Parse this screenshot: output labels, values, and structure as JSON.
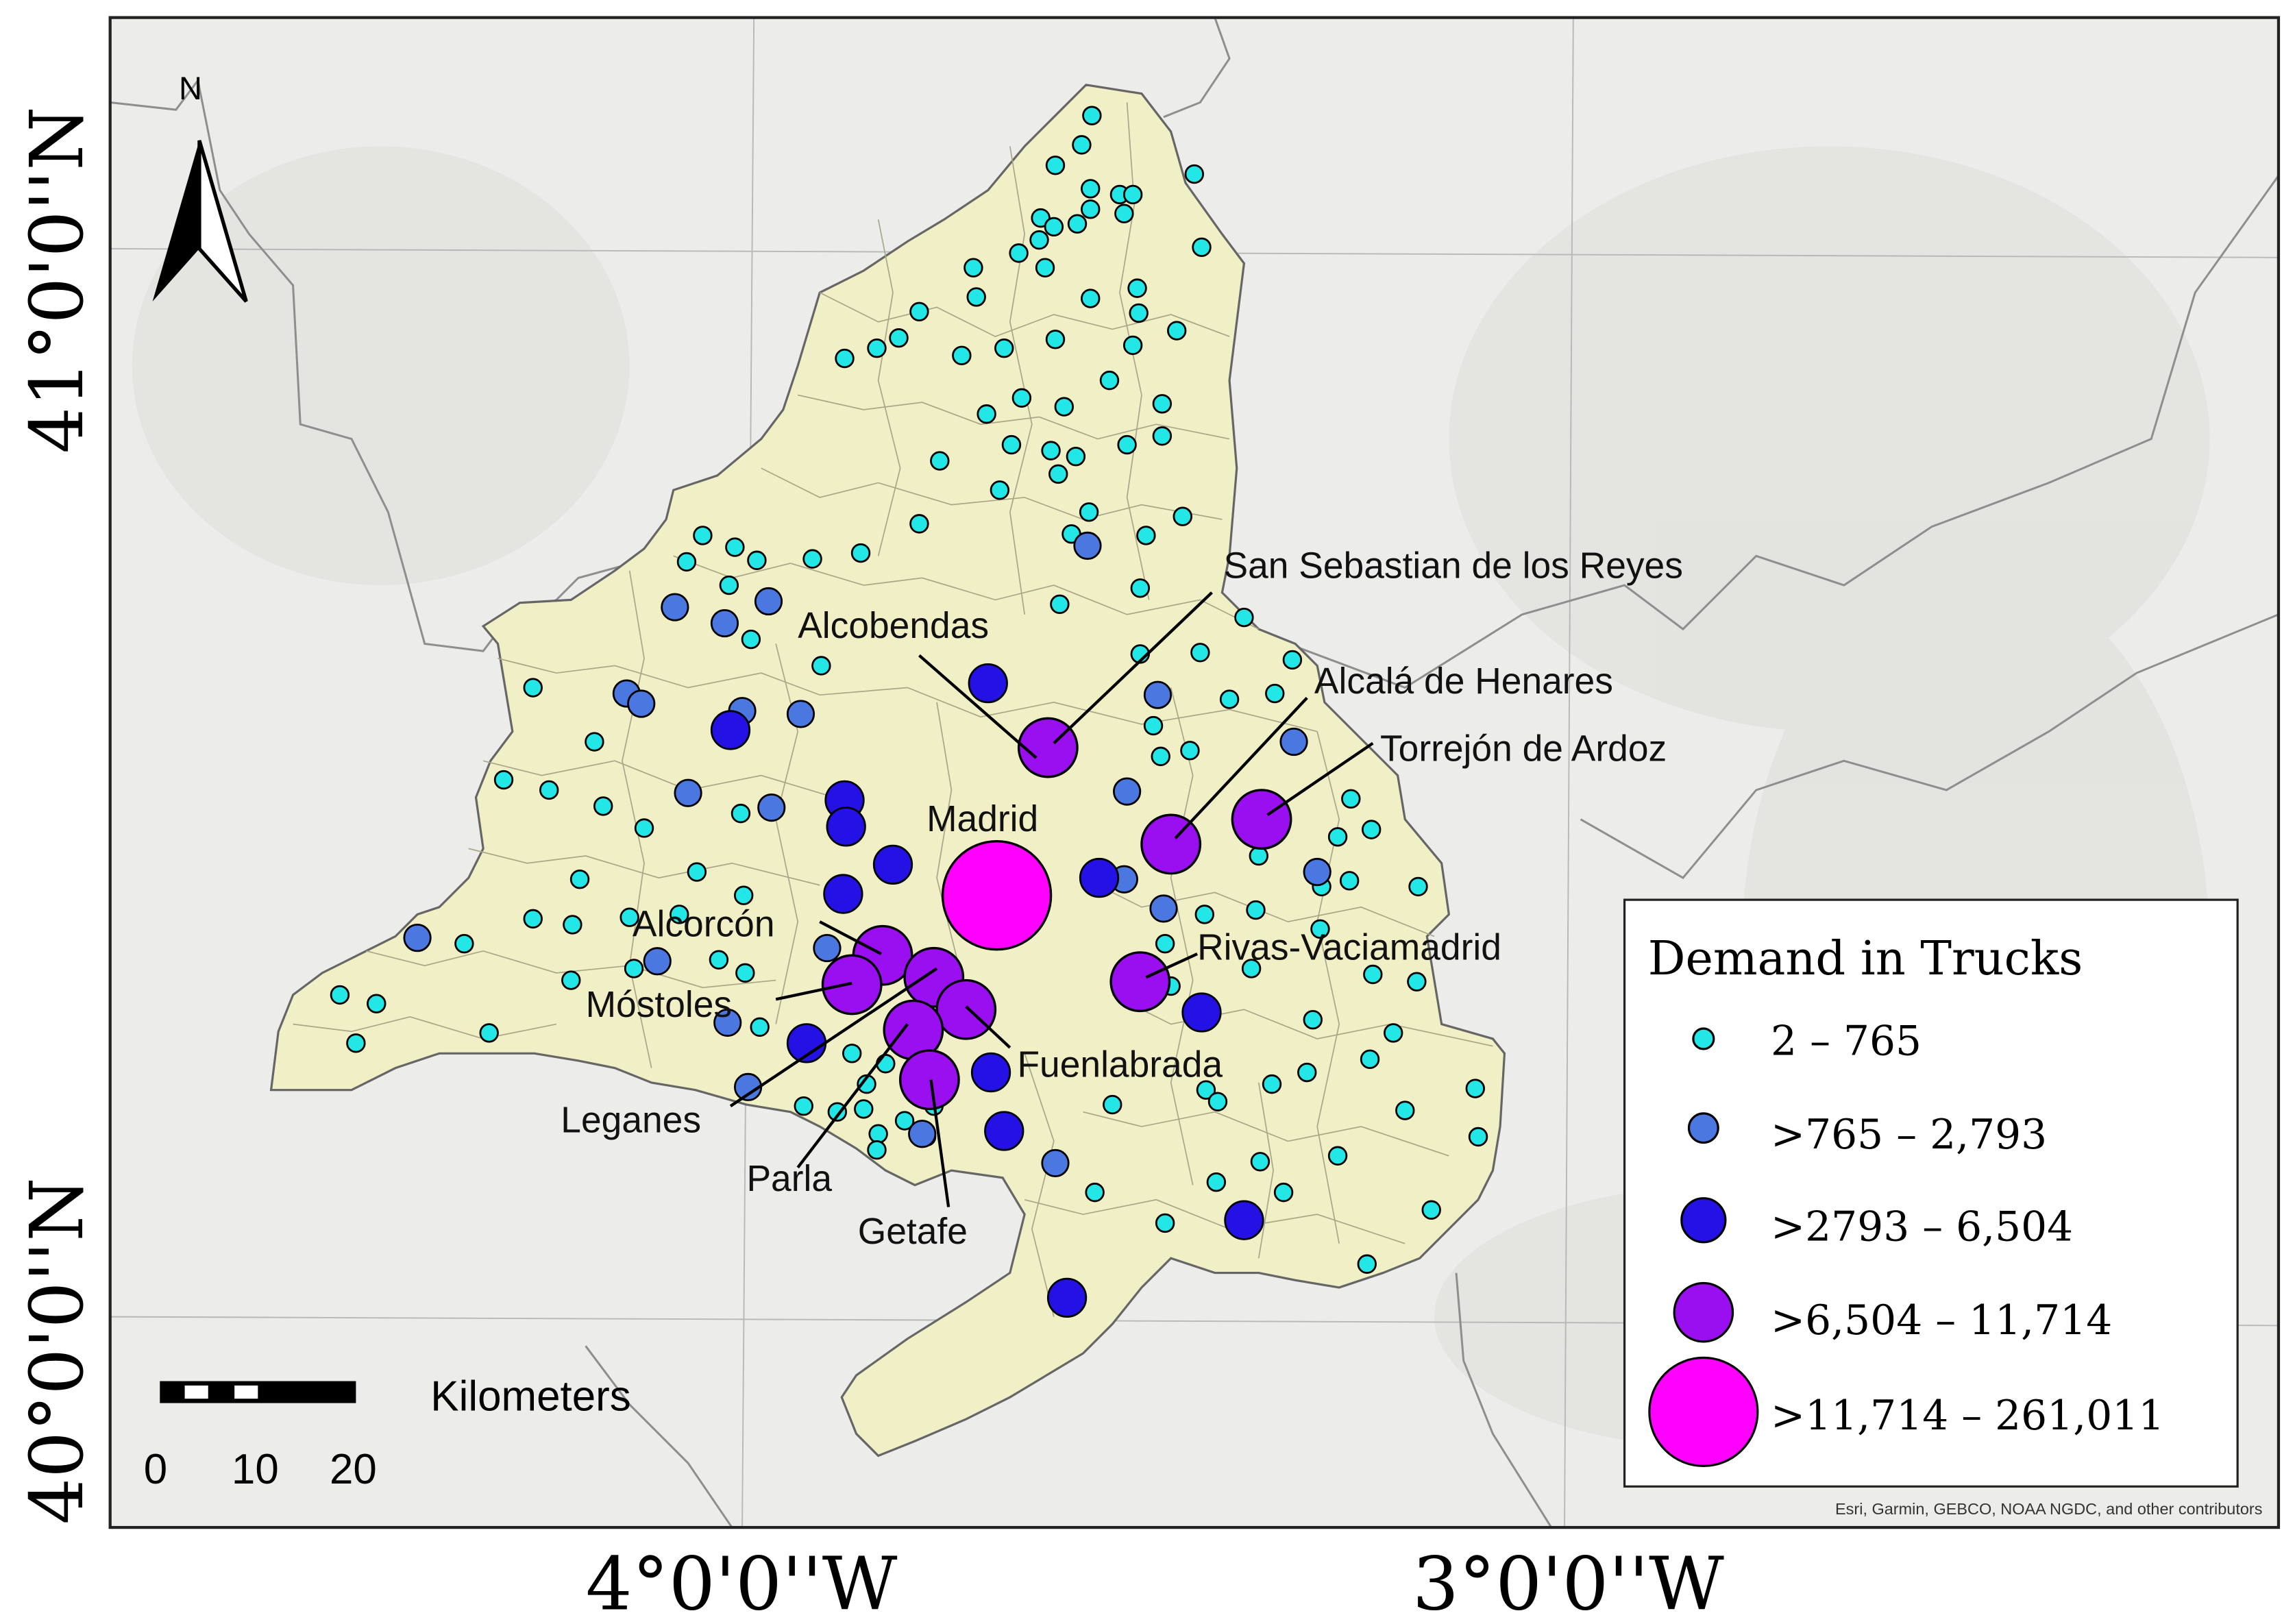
{
  "map": {
    "labels": {
      "lat_top": "41°0'0''N",
      "lat_bottom": "40°0'0''N",
      "lon_left": "4°0'0''W",
      "lon_right": "3°0'0''W"
    },
    "north_arrow": {
      "label": "N"
    },
    "scale_bar": {
      "title": "Kilometers",
      "ticks": [
        "0",
        "10",
        "20"
      ]
    },
    "attribution": "Esri, Garmin, GEBCO, NOAA NGDC, and other contributors",
    "colors": {
      "region_fill": "#f1efc6",
      "class1": "#23e6e6",
      "class2": "#4a78e0",
      "class3": "#2412e4",
      "class4": "#9a0ff0",
      "class5": "#ff00ff"
    },
    "legend": {
      "title": "Demand in Trucks",
      "items": [
        {
          "label": "2 – 765",
          "class": 1
        },
        {
          "label": ">765 – 2,793",
          "class": 2
        },
        {
          "label": ">2793 – 6,504",
          "class": 3
        },
        {
          "label": ">6,504 – 11,714",
          "class": 4
        },
        {
          "label": ">11,714 – 261,011",
          "class": 5
        }
      ]
    },
    "city_labels": [
      "San Sebastian de los Reyes",
      "Alcobendas",
      "Alcalá de Henares",
      "Torrejón de Ardoz",
      "Madrid",
      "Alcorcón",
      "Rivas-Vaciamadrid",
      "Móstoles",
      "Fuenlabrada",
      "Leganes",
      "Parla",
      "Getafe"
    ]
  }
}
